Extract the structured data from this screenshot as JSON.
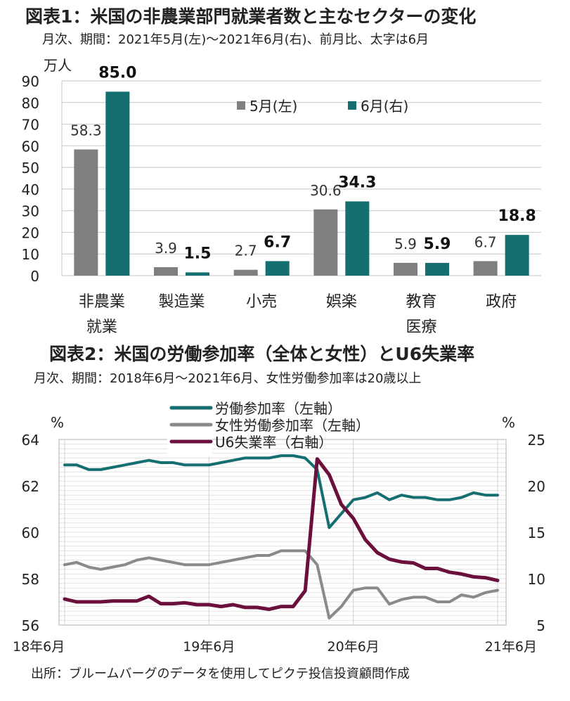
{
  "header": {
    "title1": "図表1：米国の非農業部門就業者数と主なセクターの変化",
    "subtitle1": "月次、期間：2021年5月(左)～2021年6月(右)、前月比、太字は6月",
    "title2": "図表2：米国の労働参加率（全体と女性）とU6失業率",
    "subtitle2": "月次、期間：2018年6月～2021年6月、女性労働参加率は20歳以上",
    "source": "出所：ブルームバーグのデータを使用してピクテ投信投資顧問作成"
  },
  "colors": {
    "gray": "#7f7f7f",
    "teal": "#156e70",
    "grayLine": "#8a8a8a",
    "maroon": "#6b0f3c"
  },
  "chart_data": [
    {
      "type": "bar",
      "title": "図表1：米国の非農業部門就業者数と主なセクターの変化",
      "ylabel": "万人",
      "ylim": [
        0,
        90
      ],
      "yticks": [
        0,
        10,
        20,
        30,
        40,
        50,
        60,
        70,
        80,
        90
      ],
      "categories": [
        [
          "非農業",
          "就業"
        ],
        [
          "製造業"
        ],
        [
          "小売"
        ],
        [
          "娯楽"
        ],
        [
          "教育",
          "医療"
        ],
        [
          "政府"
        ]
      ],
      "series": [
        {
          "name": "5月(左)",
          "values": [
            58.3,
            3.9,
            2.7,
            30.6,
            5.9,
            6.7
          ],
          "labels": [
            "58.3",
            "3.9",
            "2.7",
            "30.6",
            "5.9",
            "6.7"
          ]
        },
        {
          "name": "6月(右)",
          "values": [
            85.0,
            1.5,
            6.7,
            34.3,
            5.9,
            18.8
          ],
          "labels": [
            "85.0",
            "1.5",
            "6.7",
            "34.3",
            "5.9",
            "18.8"
          ]
        }
      ],
      "legend": [
        "5月(左)",
        "6月(右)"
      ]
    },
    {
      "type": "line",
      "title": "図表2：米国の労働参加率（全体と女性）とU6失業率",
      "left_unit": "%",
      "right_unit": "%",
      "left_ylim": [
        56,
        64
      ],
      "left_ticks": [
        56,
        58,
        60,
        62,
        64
      ],
      "right_ylim": [
        5,
        25
      ],
      "right_ticks": [
        5,
        10,
        15,
        20,
        25
      ],
      "x_start": "2018-06",
      "x_ticks": [
        {
          "label": "18年6月",
          "index": 0
        },
        {
          "label": "19年6月",
          "index": 12
        },
        {
          "label": "20年6月",
          "index": 24
        },
        {
          "label": "21年6月",
          "index": 36
        }
      ],
      "series": [
        {
          "name": "労働参加率（左軸）",
          "axis": "left",
          "values": [
            62.9,
            62.9,
            62.7,
            62.7,
            62.8,
            62.9,
            63.0,
            63.1,
            63.0,
            63.0,
            62.9,
            62.9,
            62.9,
            63.0,
            63.1,
            63.2,
            63.2,
            63.2,
            63.3,
            63.3,
            63.2,
            62.7,
            60.2,
            60.8,
            61.4,
            61.5,
            61.7,
            61.4,
            61.6,
            61.5,
            61.5,
            61.4,
            61.4,
            61.5,
            61.7,
            61.6,
            61.6
          ]
        },
        {
          "name": "女性労働参加率（左軸）",
          "axis": "left",
          "values": [
            58.6,
            58.7,
            58.5,
            58.4,
            58.5,
            58.6,
            58.8,
            58.9,
            58.8,
            58.7,
            58.6,
            58.6,
            58.6,
            58.7,
            58.8,
            58.9,
            59.0,
            59.0,
            59.2,
            59.2,
            59.2,
            58.6,
            56.3,
            56.8,
            57.5,
            57.6,
            57.6,
            56.9,
            57.1,
            57.2,
            57.2,
            57.0,
            57.0,
            57.3,
            57.2,
            57.4,
            57.5
          ]
        },
        {
          "name": "U6失業率（右軸）",
          "axis": "right",
          "values": [
            7.8,
            7.5,
            7.5,
            7.5,
            7.6,
            7.6,
            7.6,
            8.1,
            7.3,
            7.3,
            7.4,
            7.2,
            7.2,
            7.0,
            7.2,
            6.9,
            6.9,
            6.7,
            7.0,
            7.0,
            8.7,
            22.9,
            21.2,
            18.0,
            16.5,
            14.2,
            12.8,
            12.1,
            11.8,
            11.7,
            11.1,
            11.1,
            10.7,
            10.5,
            10.2,
            10.1,
            9.8
          ]
        }
      ]
    }
  ]
}
